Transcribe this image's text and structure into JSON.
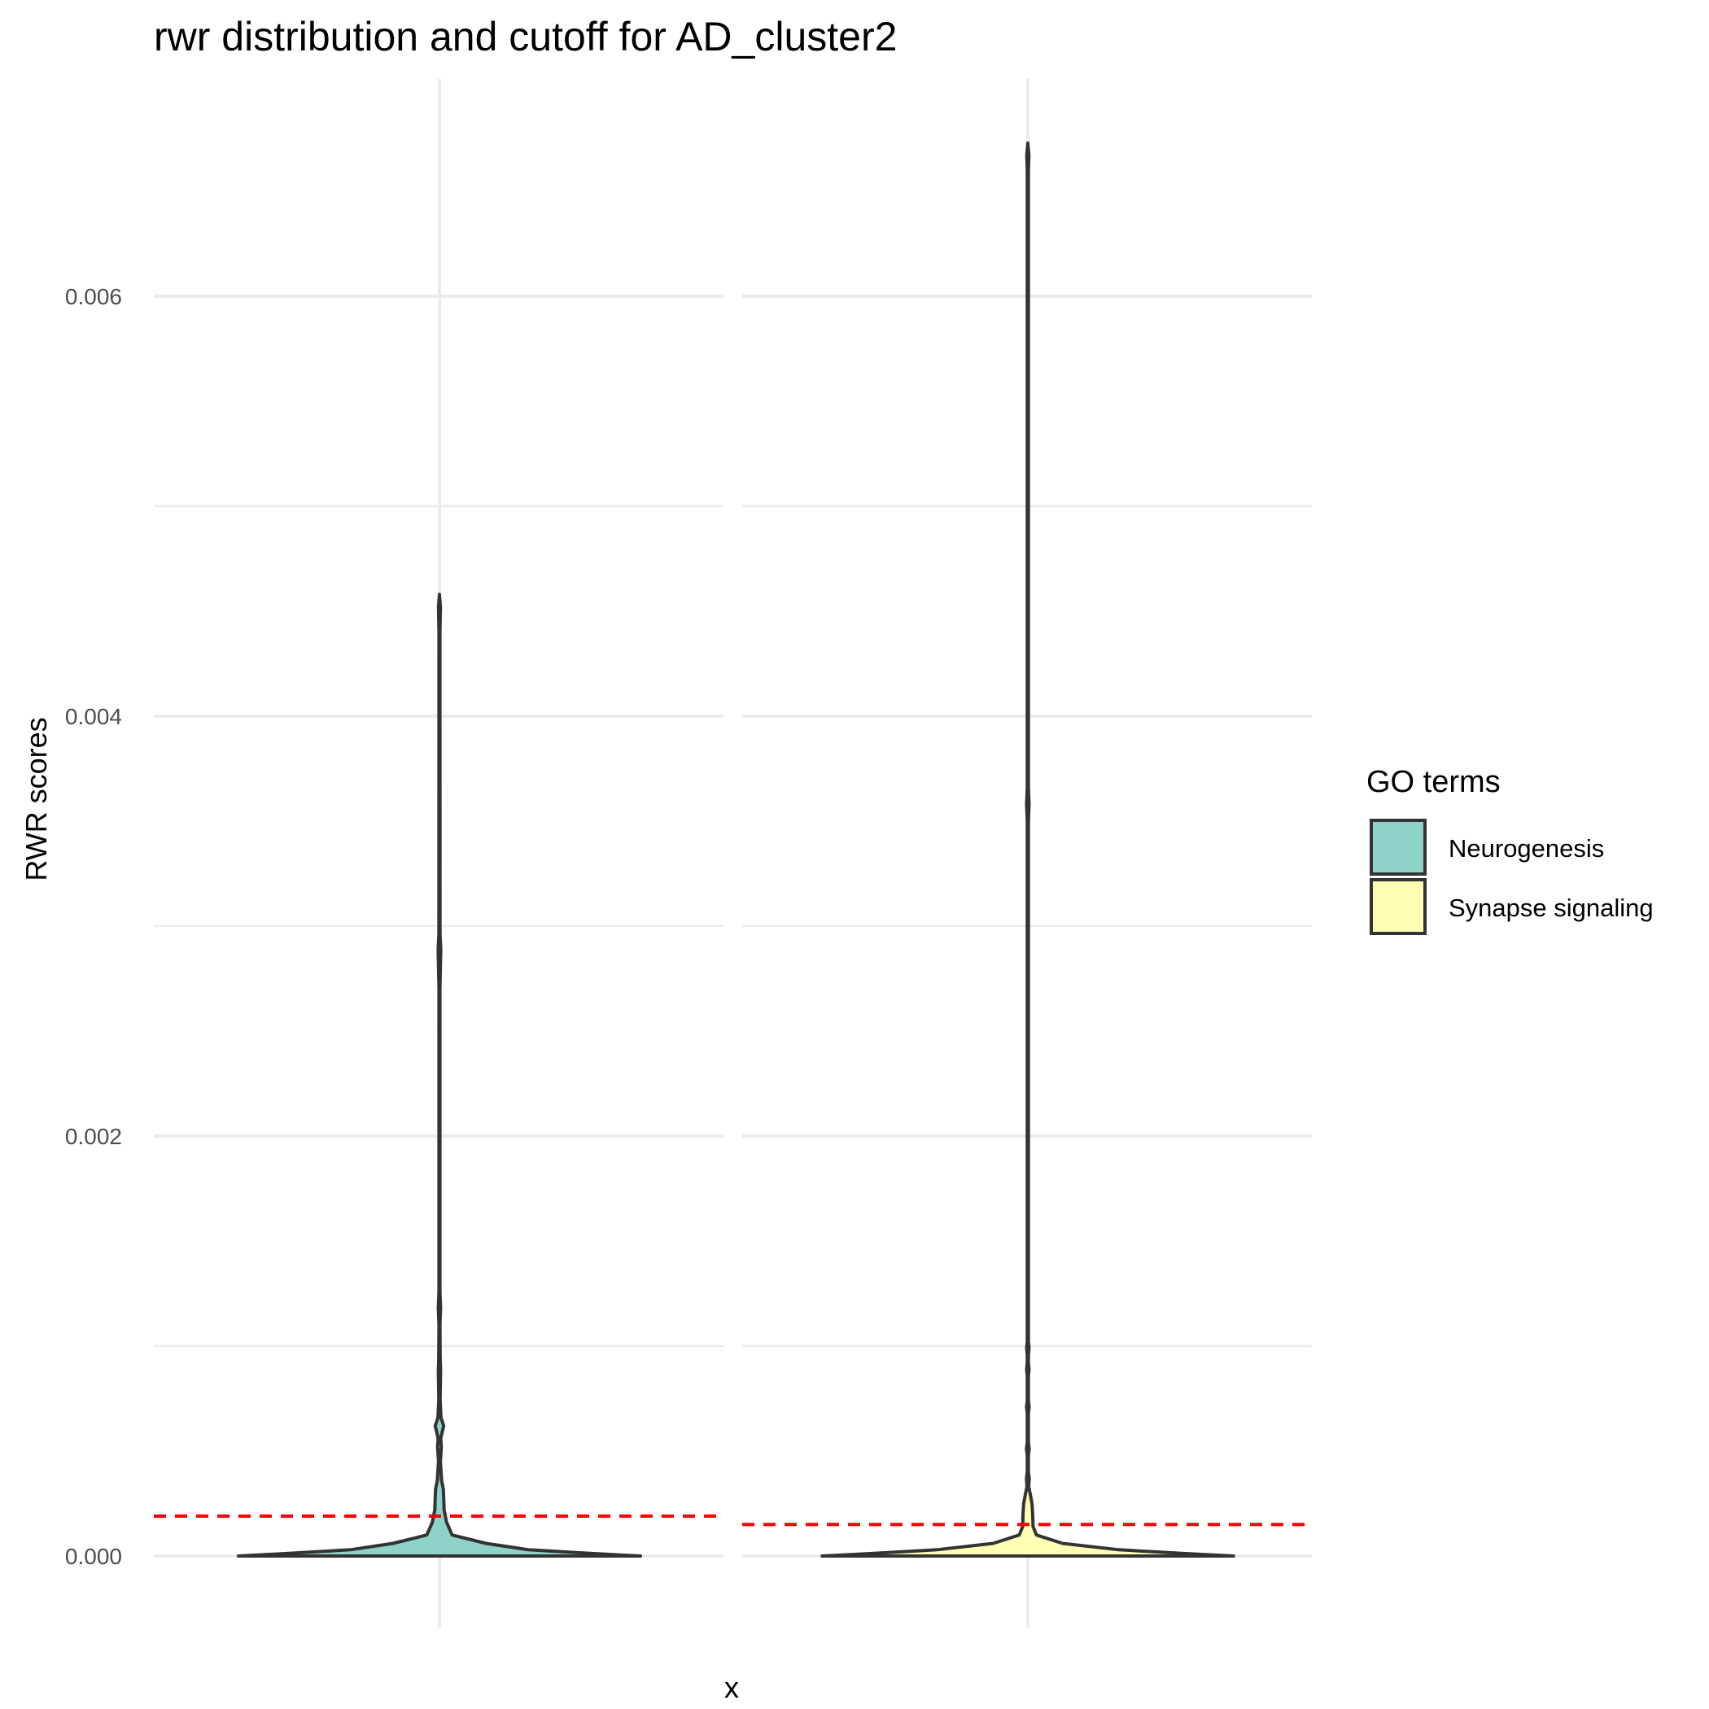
{
  "chart_data": {
    "type": "violin",
    "title": "rwr distribution and cutoff for AD_cluster2",
    "xlabel": "x",
    "ylabel": "RWR scores",
    "ylim": [
      -0.0004,
      0.0071
    ],
    "yticks": [
      0.0,
      0.002,
      0.004,
      0.006
    ],
    "ytick_labels": [
      "0.000",
      "0.002",
      "0.004",
      "0.006"
    ],
    "grid": true,
    "legend": {
      "title": "GO terms",
      "position": "right",
      "entries": [
        {
          "label": "Neurogenesis",
          "color": "#8dd3c7"
        },
        {
          "label": "Synapse signaling",
          "color": "#ffffb3"
        }
      ]
    },
    "panels": [
      {
        "name": "Neurogenesis",
        "color": "#8dd3c7",
        "max": 0.00458,
        "cutoff": 0.00019,
        "density_profile": [
          [
            0.0,
            0.95
          ],
          [
            1.2e-05,
            0.72
          ],
          [
            3e-05,
            0.42
          ],
          [
            6e-05,
            0.22
          ],
          [
            0.0001,
            0.06
          ],
          [
            0.00016,
            0.034
          ],
          [
            0.00022,
            0.022
          ],
          [
            0.00028,
            0.02
          ],
          [
            0.00032,
            0.018
          ],
          [
            0.00036,
            0.01
          ],
          [
            0.00045,
            0.0045
          ],
          [
            0.00052,
            0.009
          ],
          [
            0.00056,
            0.006
          ],
          [
            0.00062,
            0.02
          ],
          [
            0.00066,
            0.007
          ],
          [
            0.00075,
            0.003
          ],
          [
            0.00088,
            0.0055
          ],
          [
            0.00094,
            0.0035
          ],
          [
            0.0011,
            0.0025
          ],
          [
            0.00118,
            0.0055
          ],
          [
            0.00126,
            0.0025
          ],
          [
            0.0027,
            0.0025
          ],
          [
            0.00289,
            0.0062
          ],
          [
            0.00296,
            0.0028
          ],
          [
            0.0044,
            0.0025
          ],
          [
            0.00452,
            0.0045
          ],
          [
            0.00458,
            0.0
          ]
        ]
      },
      {
        "name": "Synapse signaling",
        "color": "#ffffb3",
        "max": 0.00673,
        "cutoff": 0.00015,
        "density_profile": [
          [
            0.0,
            0.95
          ],
          [
            1.2e-05,
            0.72
          ],
          [
            3e-05,
            0.42
          ],
          [
            6e-05,
            0.16
          ],
          [
            0.0001,
            0.04
          ],
          [
            0.00014,
            0.024
          ],
          [
            0.0002,
            0.022
          ],
          [
            0.00025,
            0.019
          ],
          [
            0.00029,
            0.012
          ],
          [
            0.00033,
            0.004
          ],
          [
            0.00037,
            0.0065
          ],
          [
            0.0004,
            0.0028
          ],
          [
            0.00048,
            0.0028
          ],
          [
            0.00051,
            0.0065
          ],
          [
            0.00054,
            0.0028
          ],
          [
            0.00068,
            0.0028
          ],
          [
            0.00071,
            0.0062
          ],
          [
            0.00074,
            0.0028
          ],
          [
            0.00086,
            0.0028
          ],
          [
            0.00089,
            0.0058
          ],
          [
            0.00092,
            0.0028
          ],
          [
            0.00096,
            0.0028
          ],
          [
            0.00099,
            0.0058
          ],
          [
            0.00102,
            0.0028
          ],
          [
            0.0035,
            0.0025
          ],
          [
            0.00358,
            0.0058
          ],
          [
            0.00366,
            0.0025
          ],
          [
            0.0066,
            0.0025
          ],
          [
            0.00667,
            0.0048
          ],
          [
            0.00673,
            0.0
          ]
        ]
      }
    ]
  }
}
